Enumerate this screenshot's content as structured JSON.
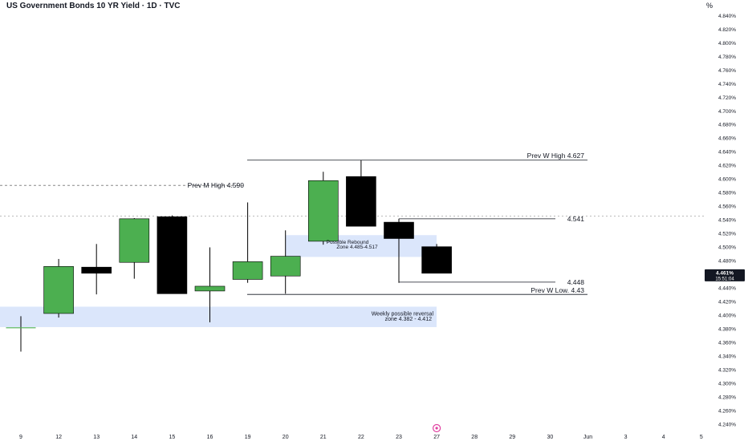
{
  "title": "US Government Bonds 10 YR Yield · 1D · TVC",
  "unit": "%",
  "colors": {
    "up": "#4caf50",
    "down": "#000000",
    "zone": "#dbe6fb",
    "line": "#131722",
    "dashed": "#888888"
  },
  "chart_data": {
    "type": "candlestick",
    "x_labels": [
      "9",
      "12",
      "13",
      "14",
      "15",
      "16",
      "19",
      "20",
      "21",
      "22",
      "23",
      "27",
      "28",
      "29",
      "30",
      "Jun",
      "3",
      "4",
      "5"
    ],
    "y_ticks": [
      "4.840%",
      "4.820%",
      "4.800%",
      "4.780%",
      "4.760%",
      "4.740%",
      "4.720%",
      "4.700%",
      "4.680%",
      "4.660%",
      "4.640%",
      "4.620%",
      "4.600%",
      "4.580%",
      "4.560%",
      "4.540%",
      "4.520%",
      "4.500%",
      "4.480%",
      "4.460%",
      "4.440%",
      "4.420%",
      "4.400%",
      "4.380%",
      "4.360%",
      "4.340%",
      "4.320%",
      "4.300%",
      "4.280%",
      "4.260%",
      "4.240%"
    ],
    "ylim": [
      4.236,
      4.848
    ],
    "candles": [
      {
        "x": "9",
        "open": 4.381,
        "high": 4.398,
        "low": 4.346,
        "close": 4.381
      },
      {
        "x": "12",
        "open": 4.402,
        "high": 4.482,
        "low": 4.396,
        "close": 4.471
      },
      {
        "x": "13",
        "open": 4.47,
        "high": 4.504,
        "low": 4.43,
        "close": 4.461
      },
      {
        "x": "14",
        "open": 4.477,
        "high": 4.542,
        "low": 4.453,
        "close": 4.541
      },
      {
        "x": "15",
        "open": 4.544,
        "high": 4.546,
        "low": 4.431,
        "close": 4.431
      },
      {
        "x": "16",
        "open": 4.435,
        "high": 4.499,
        "low": 4.389,
        "close": 4.442
      },
      {
        "x": "19",
        "open": 4.452,
        "high": 4.565,
        "low": 4.447,
        "close": 4.478
      },
      {
        "x": "20",
        "open": 4.457,
        "high": 4.524,
        "low": 4.431,
        "close": 4.486
      },
      {
        "x": "21",
        "open": 4.508,
        "high": 4.61,
        "low": 4.503,
        "close": 4.597
      },
      {
        "x": "22",
        "open": 4.603,
        "high": 4.627,
        "low": 4.53,
        "close": 4.53
      },
      {
        "x": "23",
        "open": 4.536,
        "high": 4.541,
        "low": 4.447,
        "close": 4.512
      },
      {
        "x": "27",
        "open": 4.5,
        "high": 4.504,
        "low": 4.461,
        "close": 4.461
      }
    ],
    "current_price": {
      "value": "4.461%",
      "time": "15:51:04"
    },
    "annotations": {
      "prev_m_high": "Prev M High  4.590",
      "prev_w_high": "Prev W High  4.627",
      "level_4541": "4.541",
      "level_4448": "4.448",
      "prev_w_low": "Prev W  Low. 4.43",
      "rebound_zone_1": "Possible Rebound",
      "rebound_zone_2": "Zone 4.485-4.517",
      "weekly_zone_1": "Weekly possible reversal",
      "weekly_zone_2": "zone 4.382 - 4.412"
    }
  }
}
